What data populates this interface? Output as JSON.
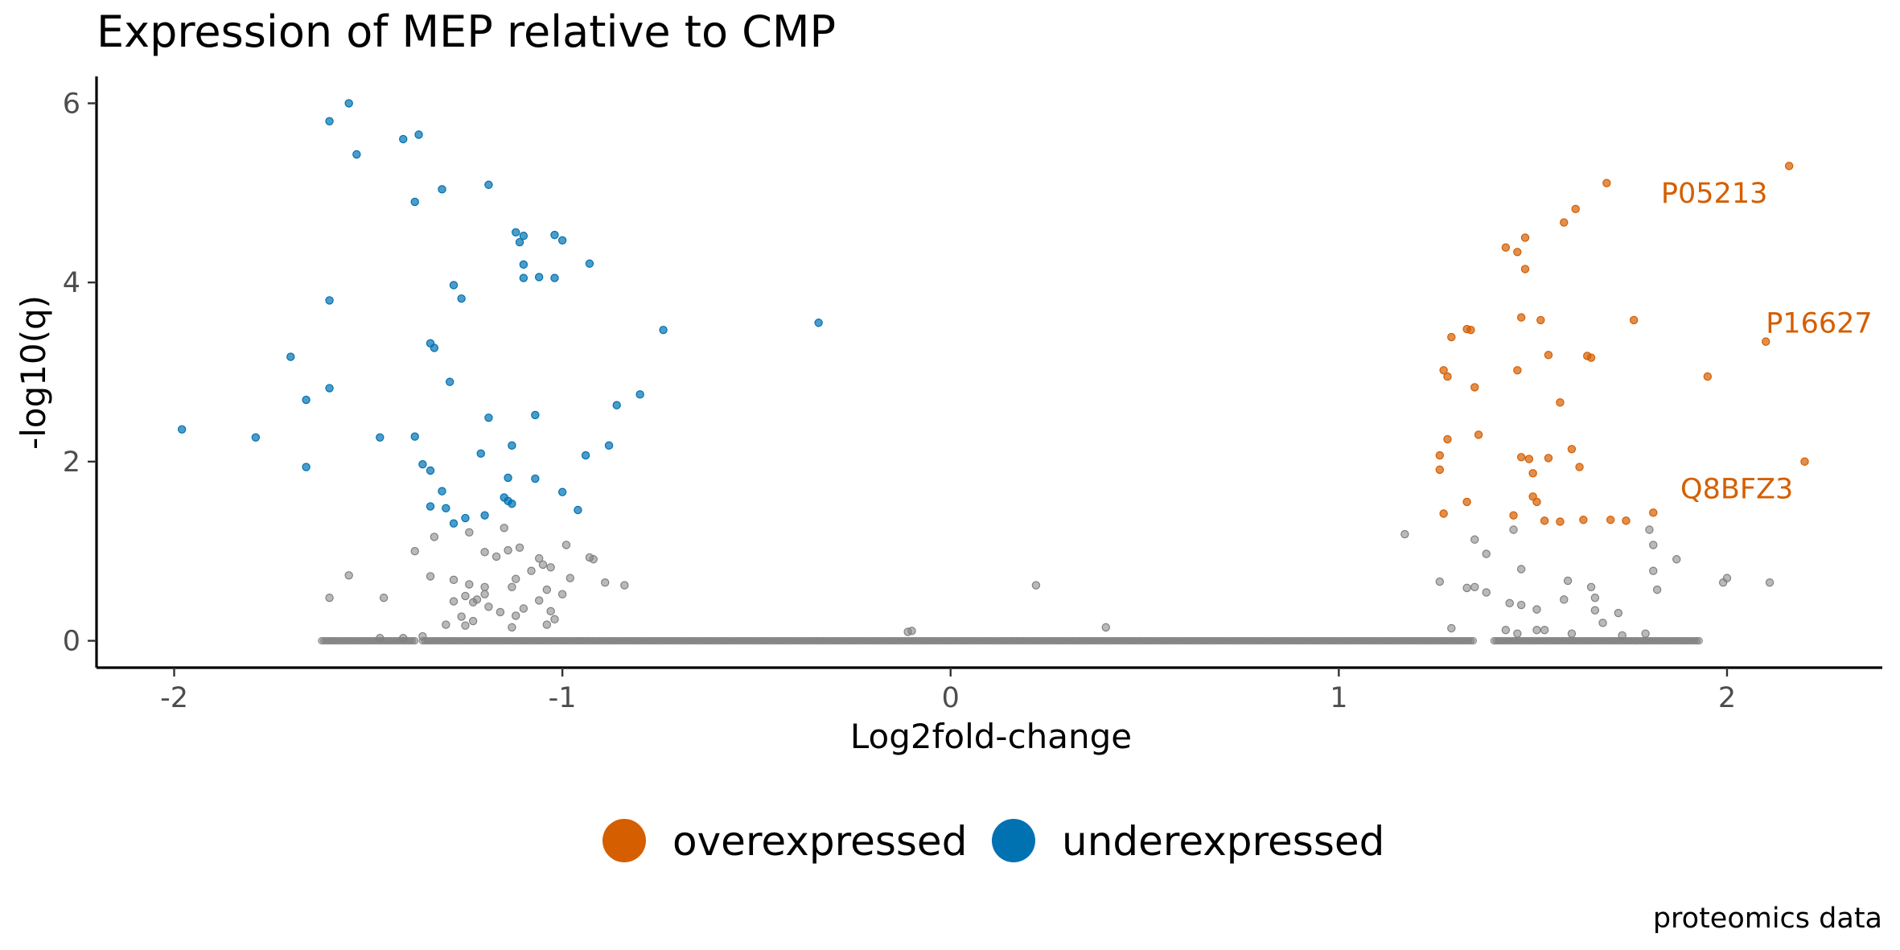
{
  "chart_data": {
    "type": "scatter",
    "title": "Expression of MEP relative to CMP",
    "xlabel": "Log2fold-change",
    "ylabel": "-log10(q)",
    "caption": "proteomics data",
    "xlim": [
      -2.2,
      2.4
    ],
    "ylim": [
      -0.3,
      6.3
    ],
    "x_ticks": [
      -2,
      -1,
      0,
      1,
      2
    ],
    "x_tick_labels": [
      "-2",
      "-1",
      "0",
      "1",
      "2"
    ],
    "y_ticks": [
      0,
      2,
      4,
      6
    ],
    "y_tick_labels": [
      "0",
      "2",
      "4",
      "6"
    ],
    "grid": false,
    "legend_position": "bottom",
    "colors": {
      "overexpressed": "#D55E00",
      "underexpressed": "#0072B2",
      "unchanged": "#808080"
    },
    "legend": [
      {
        "key": "overexpressed",
        "label": "overexpressed"
      },
      {
        "key": "underexpressed",
        "label": "underexpressed"
      }
    ],
    "series": [
      {
        "name": "underexpressed",
        "points": [
          [
            -1.55,
            6.0
          ],
          [
            -1.6,
            5.8
          ],
          [
            -1.53,
            5.43
          ],
          [
            -1.41,
            5.6
          ],
          [
            -1.37,
            5.65
          ],
          [
            -1.31,
            5.04
          ],
          [
            -1.38,
            4.9
          ],
          [
            -1.19,
            5.09
          ],
          [
            -1.12,
            4.56
          ],
          [
            -1.1,
            4.52
          ],
          [
            -1.11,
            4.45
          ],
          [
            -1.02,
            4.53
          ],
          [
            -1.0,
            4.47
          ],
          [
            -1.1,
            4.2
          ],
          [
            -0.93,
            4.21
          ],
          [
            -1.1,
            4.05
          ],
          [
            -1.06,
            4.06
          ],
          [
            -1.02,
            4.05
          ],
          [
            -1.28,
            3.97
          ],
          [
            -1.26,
            3.82
          ],
          [
            -1.6,
            3.8
          ],
          [
            -0.74,
            3.47
          ],
          [
            -0.34,
            3.55
          ],
          [
            -1.34,
            3.32
          ],
          [
            -1.33,
            3.27
          ],
          [
            -1.7,
            3.17
          ],
          [
            -1.29,
            2.89
          ],
          [
            -1.6,
            2.82
          ],
          [
            -0.8,
            2.75
          ],
          [
            -1.66,
            2.69
          ],
          [
            -0.86,
            2.63
          ],
          [
            -1.98,
            2.36
          ],
          [
            -1.19,
            2.49
          ],
          [
            -1.07,
            2.52
          ],
          [
            -1.79,
            2.27
          ],
          [
            -1.47,
            2.27
          ],
          [
            -1.38,
            2.28
          ],
          [
            -1.13,
            2.18
          ],
          [
            -0.88,
            2.18
          ],
          [
            -1.21,
            2.09
          ],
          [
            -0.94,
            2.07
          ],
          [
            -1.66,
            1.94
          ],
          [
            -1.36,
            1.97
          ],
          [
            -1.34,
            1.9
          ],
          [
            -1.07,
            1.81
          ],
          [
            -1.14,
            1.82
          ],
          [
            -1.31,
            1.67
          ],
          [
            -1.0,
            1.66
          ],
          [
            -1.15,
            1.6
          ],
          [
            -1.14,
            1.56
          ],
          [
            -1.13,
            1.53
          ],
          [
            -1.34,
            1.5
          ],
          [
            -1.3,
            1.48
          ],
          [
            -0.96,
            1.46
          ],
          [
            -1.2,
            1.4
          ],
          [
            -1.25,
            1.37
          ],
          [
            -1.28,
            1.31
          ]
        ]
      },
      {
        "name": "overexpressed",
        "points": [
          [
            2.16,
            5.3
          ],
          [
            1.69,
            5.11
          ],
          [
            1.61,
            4.82
          ],
          [
            1.58,
            4.67
          ],
          [
            1.48,
            4.5
          ],
          [
            1.43,
            4.39
          ],
          [
            1.46,
            4.34
          ],
          [
            1.48,
            4.15
          ],
          [
            1.76,
            3.58
          ],
          [
            1.47,
            3.61
          ],
          [
            1.52,
            3.58
          ],
          [
            1.33,
            3.48
          ],
          [
            1.34,
            3.47
          ],
          [
            1.29,
            3.39
          ],
          [
            2.1,
            3.34
          ],
          [
            1.54,
            3.19
          ],
          [
            1.64,
            3.18
          ],
          [
            1.65,
            3.16
          ],
          [
            1.27,
            3.02
          ],
          [
            1.28,
            2.95
          ],
          [
            1.46,
            3.02
          ],
          [
            1.95,
            2.95
          ],
          [
            1.35,
            2.83
          ],
          [
            1.57,
            2.66
          ],
          [
            1.36,
            2.3
          ],
          [
            1.28,
            2.25
          ],
          [
            1.26,
            2.07
          ],
          [
            1.6,
            2.14
          ],
          [
            2.2,
            2.0
          ],
          [
            1.47,
            2.05
          ],
          [
            1.49,
            2.03
          ],
          [
            1.54,
            2.04
          ],
          [
            1.62,
            1.94
          ],
          [
            1.26,
            1.91
          ],
          [
            1.5,
            1.87
          ],
          [
            1.5,
            1.61
          ],
          [
            1.51,
            1.55
          ],
          [
            1.33,
            1.55
          ],
          [
            1.27,
            1.42
          ],
          [
            1.45,
            1.4
          ],
          [
            1.53,
            1.34
          ],
          [
            1.57,
            1.33
          ],
          [
            1.63,
            1.35
          ],
          [
            1.7,
            1.35
          ],
          [
            1.74,
            1.34
          ],
          [
            1.81,
            1.43
          ]
        ]
      },
      {
        "name": "unchanged",
        "points": [
          [
            -1.33,
            1.16
          ],
          [
            -1.24,
            1.21
          ],
          [
            -1.15,
            1.26
          ],
          [
            -1.11,
            1.04
          ],
          [
            -1.14,
            1.01
          ],
          [
            -1.38,
            1.0
          ],
          [
            -1.2,
            0.99
          ],
          [
            -1.17,
            0.94
          ],
          [
            -1.06,
            0.92
          ],
          [
            -0.99,
            1.07
          ],
          [
            -0.92,
            0.91
          ],
          [
            -0.93,
            0.93
          ],
          [
            -1.55,
            0.73
          ],
          [
            -1.6,
            0.48
          ],
          [
            -1.46,
            0.48
          ],
          [
            -1.34,
            0.72
          ],
          [
            -1.28,
            0.68
          ],
          [
            -1.24,
            0.63
          ],
          [
            -1.2,
            0.6
          ],
          [
            -1.13,
            0.6
          ],
          [
            -1.12,
            0.69
          ],
          [
            -1.08,
            0.78
          ],
          [
            -1.05,
            0.85
          ],
          [
            -1.03,
            0.82
          ],
          [
            -0.98,
            0.7
          ],
          [
            -1.2,
            0.52
          ],
          [
            -1.23,
            0.43
          ],
          [
            -1.25,
            0.5
          ],
          [
            -1.28,
            0.44
          ],
          [
            -1.22,
            0.46
          ],
          [
            -1.19,
            0.38
          ],
          [
            -1.16,
            0.32
          ],
          [
            -1.12,
            0.28
          ],
          [
            -1.1,
            0.36
          ],
          [
            -1.06,
            0.45
          ],
          [
            -1.04,
            0.57
          ],
          [
            -1.0,
            0.52
          ],
          [
            -1.03,
            0.33
          ],
          [
            -1.02,
            0.24
          ],
          [
            -1.04,
            0.18
          ],
          [
            -1.26,
            0.27
          ],
          [
            -1.23,
            0.22
          ],
          [
            -1.25,
            0.17
          ],
          [
            -1.13,
            0.15
          ],
          [
            -1.3,
            0.18
          ],
          [
            -0.89,
            0.65
          ],
          [
            -0.84,
            0.62
          ],
          [
            0.22,
            0.62
          ],
          [
            -0.11,
            0.1
          ],
          [
            -0.1,
            0.11
          ],
          [
            0.4,
            0.15
          ],
          [
            1.17,
            1.19
          ],
          [
            1.35,
            1.13
          ],
          [
            1.38,
            0.97
          ],
          [
            1.45,
            1.24
          ],
          [
            1.47,
            0.8
          ],
          [
            1.59,
            0.67
          ],
          [
            1.26,
            0.66
          ],
          [
            1.33,
            0.59
          ],
          [
            1.35,
            0.6
          ],
          [
            1.38,
            0.54
          ],
          [
            1.44,
            0.42
          ],
          [
            1.47,
            0.4
          ],
          [
            1.51,
            0.35
          ],
          [
            1.58,
            0.46
          ],
          [
            1.65,
            0.6
          ],
          [
            1.66,
            0.48
          ],
          [
            1.66,
            0.34
          ],
          [
            1.68,
            0.2
          ],
          [
            1.72,
            0.31
          ],
          [
            1.8,
            1.24
          ],
          [
            1.81,
            1.07
          ],
          [
            1.81,
            0.78
          ],
          [
            1.82,
            0.57
          ],
          [
            1.87,
            0.91
          ],
          [
            1.99,
            0.65
          ],
          [
            2.0,
            0.7
          ],
          [
            2.11,
            0.65
          ],
          [
            1.29,
            0.14
          ],
          [
            1.43,
            0.12
          ],
          [
            1.51,
            0.12
          ],
          [
            1.53,
            0.12
          ],
          [
            1.46,
            0.08
          ],
          [
            1.6,
            0.08
          ],
          [
            1.79,
            0.08
          ],
          [
            1.73,
            0.06
          ],
          [
            -1.36,
            0.05
          ],
          [
            -1.41,
            0.03
          ],
          [
            -1.47,
            0.03
          ]
        ]
      }
    ],
    "baseline": {
      "y": 0,
      "x_ranges": [
        [
          -1.62,
          -1.38
        ],
        [
          -1.36,
          1.35
        ],
        [
          1.4,
          1.93
        ]
      ]
    },
    "annotations": [
      {
        "text": "P05213",
        "x": 1.83,
        "y": 5.0,
        "color": "#D55E00"
      },
      {
        "text": "P16627",
        "x": 2.1,
        "y": 3.55,
        "color": "#D55E00"
      },
      {
        "text": "Q8BFZ3",
        "x": 1.88,
        "y": 1.7,
        "color": "#D55E00"
      }
    ]
  }
}
